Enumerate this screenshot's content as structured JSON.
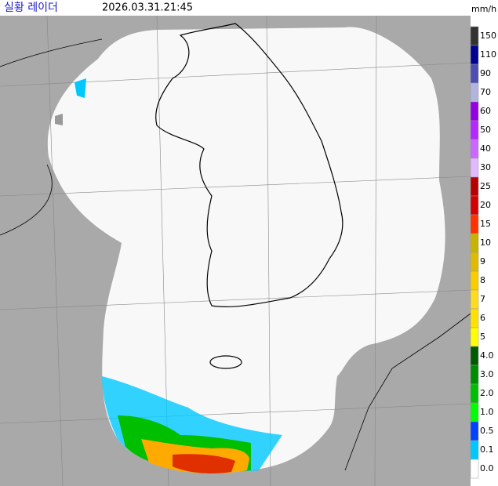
{
  "header": {
    "title": "실황 레이더",
    "time": "2026.03.31.21:45",
    "unit": "mm/h"
  },
  "legend": [
    {
      "label": "150",
      "color": "#333333"
    },
    {
      "label": "110",
      "color": "#000390"
    },
    {
      "label": "90",
      "color": "#4c4eb1"
    },
    {
      "label": "70",
      "color": "#b3b4de"
    },
    {
      "label": "60",
      "color": "#9300e4"
    },
    {
      "label": "50",
      "color": "#b329ff"
    },
    {
      "label": "40",
      "color": "#c969ff"
    },
    {
      "label": "30",
      "color": "#e0b9ff"
    },
    {
      "label": "25",
      "color": "#b40000"
    },
    {
      "label": "20",
      "color": "#d20000"
    },
    {
      "label": "15",
      "color": "#ff3200"
    },
    {
      "label": "10",
      "color": "#c8b400"
    },
    {
      "label": "9",
      "color": "#e0b900"
    },
    {
      "label": "8",
      "color": "#f9cd00"
    },
    {
      "label": "7",
      "color": "#ffdc1f"
    },
    {
      "label": "6",
      "color": "#ffe100"
    },
    {
      "label": "5",
      "color": "#ffff00"
    },
    {
      "label": "4.0",
      "color": "#005a00"
    },
    {
      "label": "3.0",
      "color": "#008c00"
    },
    {
      "label": "2.0",
      "color": "#00be00"
    },
    {
      "label": "1.0",
      "color": "#00ff00"
    },
    {
      "label": "0.5",
      "color": "#0040ff"
    },
    {
      "label": "0.1",
      "color": "#00c8ff"
    },
    {
      "label": "0.0",
      "color": "#ffffff"
    }
  ]
}
